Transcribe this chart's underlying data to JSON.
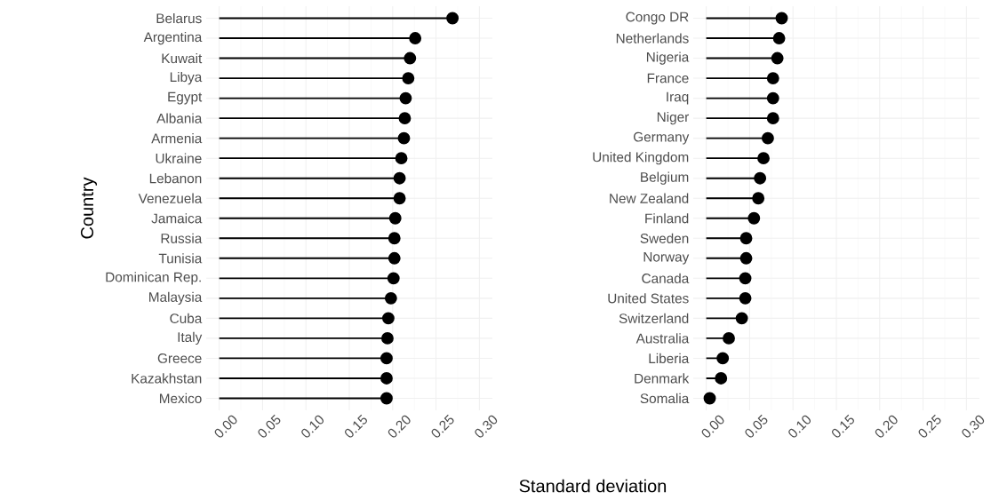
{
  "chart_data": [
    {
      "type": "lollipop",
      "orientation": "horizontal",
      "xlabel": "Standard deviation",
      "ylabel": "Country",
      "grid": true,
      "marker": "circle",
      "categories": [
        "Belarus",
        "Argentina",
        "Kuwait",
        "Libya",
        "Egypt",
        "Albania",
        "Armenia",
        "Ukraine",
        "Lebanon",
        "Venezuela",
        "Jamaica",
        "Russia",
        "Tunisia",
        "Dominican Rep.",
        "Malaysia",
        "Cuba",
        "Italy",
        "Greece",
        "Kazakhstan",
        "Mexico"
      ],
      "values": [
        0.269,
        0.226,
        0.22,
        0.218,
        0.215,
        0.214,
        0.213,
        0.21,
        0.208,
        0.208,
        0.203,
        0.202,
        0.202,
        0.201,
        0.198,
        0.195,
        0.194,
        0.193,
        0.193,
        0.193
      ],
      "color": "#000000",
      "xlim": [
        -0.015,
        0.315
      ],
      "xticks": [
        {
          "value": 0,
          "label": "0.00"
        },
        {
          "value": 0.05,
          "label": "0.05"
        },
        {
          "value": 0.1,
          "label": "0.10"
        },
        {
          "value": 0.15,
          "label": "0.15"
        },
        {
          "value": 0.2,
          "label": "0.20"
        },
        {
          "value": 0.25,
          "label": "0.25"
        },
        {
          "value": 0.3,
          "label": "0.30"
        }
      ]
    },
    {
      "type": "lollipop",
      "orientation": "horizontal",
      "grid": true,
      "marker": "circle",
      "categories": [
        "Congo DR",
        "Netherlands",
        "Nigeria",
        "France",
        "Iraq",
        "Niger",
        "Germany",
        "United Kingdom",
        "Belgium",
        "New Zealand",
        "Finland",
        "Sweden",
        "Norway",
        "Canada",
        "United States",
        "Switzerland",
        "Australia",
        "Liberia",
        "Denmark",
        "Somalia"
      ],
      "values": [
        0.087,
        0.084,
        0.082,
        0.077,
        0.077,
        0.077,
        0.071,
        0.066,
        0.062,
        0.06,
        0.055,
        0.046,
        0.046,
        0.045,
        0.045,
        0.041,
        0.026,
        0.019,
        0.017,
        0.004
      ],
      "color": "#000000",
      "xlim": [
        -0.015,
        0.315
      ],
      "xticks": [
        {
          "value": 0,
          "label": "0.00"
        },
        {
          "value": 0.05,
          "label": "0.05"
        },
        {
          "value": 0.1,
          "label": "0.10"
        },
        {
          "value": 0.15,
          "label": "0.15"
        },
        {
          "value": 0.2,
          "label": "0.20"
        },
        {
          "value": 0.25,
          "label": "0.25"
        },
        {
          "value": 0.3,
          "label": "0.30"
        }
      ]
    }
  ]
}
